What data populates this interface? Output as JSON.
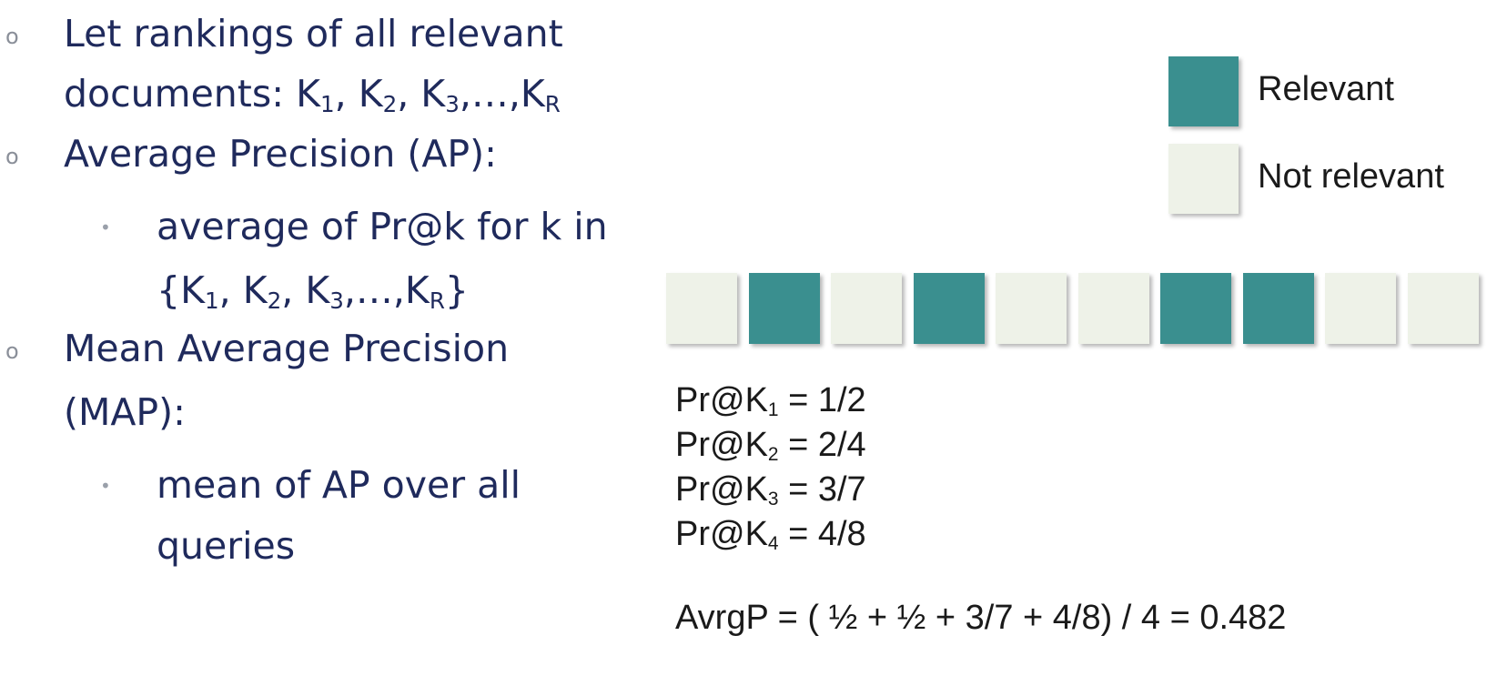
{
  "colors": {
    "relevant": "#3a8f8f",
    "not_relevant": "#eef2e8",
    "text": "#1f2a5c"
  },
  "bullets": [
    {
      "level": 1,
      "lines": [
        [
          "Let rankings of all relevant"
        ],
        [
          "documents: K",
          "1",
          ", K",
          "2",
          ", K",
          "3",
          ",…,K",
          "R"
        ]
      ]
    },
    {
      "level": 1,
      "lines": [
        [
          "Average Precision (AP):"
        ]
      ]
    },
    {
      "level": 2,
      "lines": [
        [
          "average of Pr@k  for k in"
        ],
        [
          "{K",
          "1",
          ", K",
          "2",
          ", K",
          "3",
          ",…,K",
          "R",
          "}"
        ]
      ]
    },
    {
      "level": 1,
      "lines": [
        [
          "Mean Average Precision"
        ],
        [
          "(MAP):"
        ]
      ]
    },
    {
      "level": 2,
      "lines": [
        [
          "mean of AP over all"
        ],
        [
          "queries"
        ]
      ]
    }
  ],
  "markers": {
    "level1": "o",
    "level2": "•"
  },
  "legend": [
    {
      "label": "Relevant",
      "type": "relevant"
    },
    {
      "label": "Not relevant",
      "type": "not_relevant"
    }
  ],
  "ranking": [
    "not_relevant",
    "relevant",
    "not_relevant",
    "relevant",
    "not_relevant",
    "not_relevant",
    "relevant",
    "relevant",
    "not_relevant",
    "not_relevant"
  ],
  "precisions": [
    {
      "prefix": "Pr@K",
      "sub": "1",
      "value": " = 1/2"
    },
    {
      "prefix": "Pr@K",
      "sub": "2",
      "value": " = 2/4"
    },
    {
      "prefix": "Pr@K",
      "sub": "3",
      "value": " = 3/7"
    },
    {
      "prefix": "Pr@K",
      "sub": "4",
      "value": " = 4/8"
    }
  ],
  "avg_formula": "AvrgP = ( ½ + ½ + 3/7 + 4/8) / 4 = 0.482"
}
